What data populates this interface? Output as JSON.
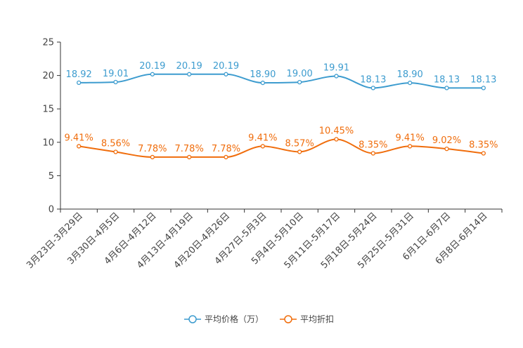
{
  "chart_data": {
    "type": "line",
    "title": "",
    "xlabel": "",
    "ylabel": "",
    "ylim": [
      0,
      25
    ],
    "yticks": [
      0,
      5,
      10,
      15,
      20,
      25
    ],
    "grid": false,
    "legend_position": "bottom-center",
    "categories": [
      "3月23日-3月29日",
      "3月30日-4月5日",
      "4月6日-4月12日",
      "4月13日-4月19日",
      "4月20日-4月26日",
      "4月27日-5月3日",
      "5月4日-5月10日",
      "5月11日-5月17日",
      "5月18日-5月24日",
      "5月25日-5月31日",
      "6月1日-6月7日",
      "6月8日-6月14日"
    ],
    "series": [
      {
        "name": "平均价格（万）",
        "color": "#3d9ccf",
        "values": [
          18.92,
          19.01,
          20.19,
          20.19,
          20.19,
          18.9,
          19.0,
          19.91,
          18.13,
          18.9,
          18.13,
          18.13
        ],
        "labels": [
          "18.92",
          "19.01",
          "20.19",
          "20.19",
          "20.19",
          "18.90",
          "19.00",
          "19.91",
          "18.13",
          "18.90",
          "18.13",
          "18.13"
        ]
      },
      {
        "name": "平均折扣",
        "color": "#f06d0c",
        "values": [
          9.41,
          8.56,
          7.78,
          7.78,
          7.78,
          9.41,
          8.57,
          10.45,
          8.35,
          9.41,
          9.02,
          8.35
        ],
        "labels": [
          "9.41%",
          "8.56%",
          "7.78%",
          "7.78%",
          "7.78%",
          "9.41%",
          "8.57%",
          "10.45%",
          "8.35%",
          "9.41%",
          "9.02%",
          "8.35%"
        ]
      }
    ]
  }
}
